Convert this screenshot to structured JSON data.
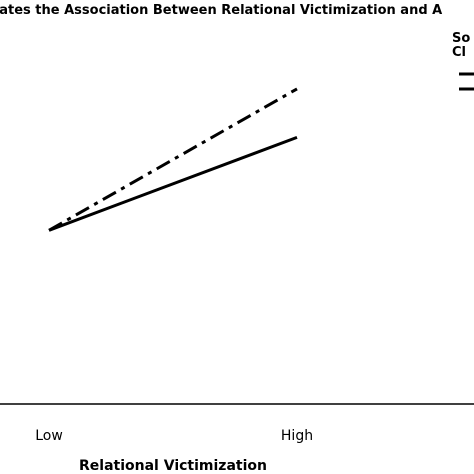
{
  "chart_data": {
    "type": "line",
    "title": "erates the Association Between Relational Victimization and A",
    "xlabel": "Relational Victimization",
    "ylabel": "",
    "categories": [
      "Low",
      "High"
    ],
    "ylim": [
      0,
      10
    ],
    "grid": false,
    "legend": {
      "placement": "top-right",
      "title_lines": [
        "So",
        "Cl"
      ]
    },
    "series": [
      {
        "values": [
          4.3,
          7.8
        ],
        "style": "dash-dot"
      },
      {
        "values": [
          4.3,
          6.6
        ],
        "style": "solid"
      }
    ]
  },
  "colors": {
    "line": "#000000",
    "background": "#ffffff"
  }
}
